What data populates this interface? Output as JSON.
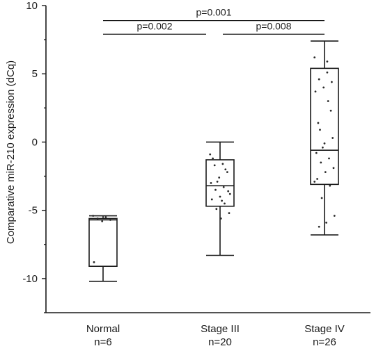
{
  "chart_data": {
    "type": "box",
    "ylabel": "Comparative miR-210 expression (dCq)",
    "ylim": [
      -12.5,
      10
    ],
    "yticks": [
      10,
      5,
      0,
      -5,
      -10
    ],
    "ytick_labels": [
      "10",
      "5",
      "0",
      "-5",
      "-10"
    ],
    "categories": [
      {
        "name": "Normal",
        "n_label": "n=6"
      },
      {
        "name": "Stage III",
        "n_label": "n=20"
      },
      {
        "name": "Stage IV",
        "n_label": "n=26"
      }
    ],
    "boxes": [
      {
        "whisker_low": -10.2,
        "q1": -9.1,
        "median": -5.7,
        "q3": -5.6,
        "whisker_high": -5.4,
        "points": [
          -5.4,
          -5.5,
          -5.6,
          -5.7,
          -5.8,
          -8.8
        ]
      },
      {
        "whisker_low": -8.3,
        "q1": -4.7,
        "median": -3.2,
        "q3": -1.3,
        "whisker_high": 0.0,
        "points": [
          -0.9,
          -1.6,
          -1.7,
          -2.2,
          -2.6,
          -3.0,
          -3.3,
          -3.5,
          -3.6,
          -4.0,
          -4.2,
          -4.5,
          -4.9,
          -5.2,
          -5.6,
          -1.2,
          -2.0,
          -2.9,
          -3.8,
          -4.3
        ]
      },
      {
        "whisker_low": -6.8,
        "q1": -3.1,
        "median": -0.6,
        "q3": 5.4,
        "whisker_high": 7.4,
        "points": [
          6.2,
          5.9,
          4.6,
          4.4,
          4.0,
          3.7,
          3.0,
          0.9,
          0.3,
          -0.1,
          -0.8,
          -1.2,
          -1.5,
          -1.9,
          -2.2,
          -2.7,
          -3.2,
          -4.1,
          -5.4,
          -5.9,
          1.4,
          2.3,
          -0.4,
          -2.9,
          5.1,
          -6.2
        ]
      }
    ],
    "comparisons": [
      {
        "from": 0,
        "to": 2,
        "label": "p=0.001"
      },
      {
        "from": 0,
        "to": 1,
        "label": "p=0.002"
      },
      {
        "from": 1,
        "to": 2,
        "label": "p=0.008"
      }
    ]
  }
}
